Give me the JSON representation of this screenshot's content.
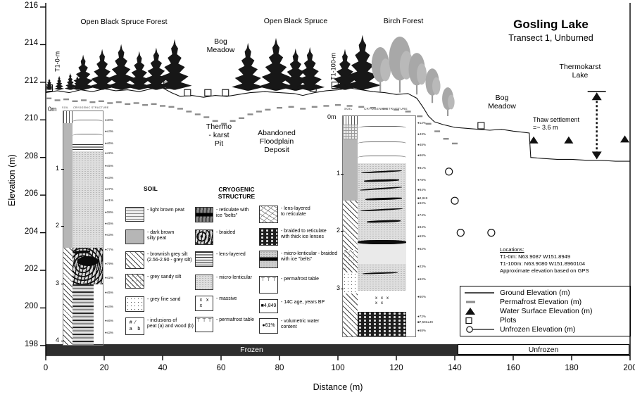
{
  "title": {
    "main": "Gosling Lake",
    "sub": "Transect 1, Unburned"
  },
  "labels": {
    "zone_spruce_forest": "Open Black Spruce Forest",
    "zone_bog_meadow_top": "Bog\nMeadow",
    "zone_open_black_spruce": "Open Black Spruce",
    "zone_birch_forest": "Birch Forest",
    "zone_bog_meadow_right": "Bog\nMeadow",
    "thermokarst_lake": "Thermokarst\nLake",
    "thaw_settlement": "Thaw settlement\n=~ 3.6 m",
    "thermokarst_pit": "Thermo\n- karst\nPit",
    "abandoned_floodplain": "Abandoned\nFloodplain\nDeposit",
    "t1_0m": "T1-0-m",
    "t1_100m": "T1-100-m",
    "frozen": "Frozen",
    "unfrozen": "Unfrozen"
  },
  "locations": {
    "heading": "Locations:",
    "line1": "T1-0m:    N63.9087  W151.8949",
    "line2": "T1-100m: N63.9080  W151.8960104",
    "line3": "Approximate elevation based on GPS"
  },
  "axes": {
    "xlabel": "Distance (m)",
    "ylabel": "Elevation (m)",
    "xlim": [
      0,
      200
    ],
    "ylim": [
      198,
      216
    ],
    "xticks": [
      0,
      20,
      40,
      60,
      80,
      100,
      120,
      140,
      160,
      180,
      200
    ],
    "yticks": [
      216,
      214,
      212,
      210,
      208,
      206,
      204,
      202,
      200,
      198
    ]
  },
  "marker_legend": [
    {
      "name": "ground",
      "label": "Ground Elevation (m)"
    },
    {
      "name": "permafrost",
      "label": "Permafrost Elevation (m)"
    },
    {
      "name": "water",
      "label": "Water Surface Elevation (m)"
    },
    {
      "name": "plots",
      "label": "Plots"
    },
    {
      "name": "unfrozen",
      "label": "Unfrozen Elevation (m)"
    }
  ],
  "soil_legend": {
    "title": "SOIL",
    "items": [
      {
        "pattern": "p-hlines",
        "label": "- light brown peat"
      },
      {
        "pattern": "p-gray",
        "label": "- dark brown\nsilty peat"
      },
      {
        "pattern": "p-hatch",
        "label": "- brownish grey silt\n(2.56-2.90 - grey silt)"
      },
      {
        "pattern": "p-sandy",
        "label": "- grey sandy silt"
      },
      {
        "pattern": "p-dots",
        "label": "- grey fine sand"
      },
      {
        "pattern": "p-incl",
        "glyph": "#  ⁄\na    b",
        "label": "- inclusions of\npeat (a) and wood (b)"
      }
    ]
  },
  "cryo_legend": {
    "title": "CRYOGENIC\nSTRUCTURE",
    "col1": [
      {
        "pattern": "p-retic",
        "label": "- reticulate with\nice \"belts\""
      },
      {
        "pattern": "p-braided",
        "label": "- braided"
      },
      {
        "pattern": "p-lens",
        "label": "- lens-layered"
      },
      {
        "pattern": "p-microlens",
        "label": "- micro-lenticular"
      },
      {
        "pattern": "p-massive",
        "glyph": "x   x\nx",
        "label": "- massive"
      },
      {
        "pattern": "p-pft",
        "glyph": "⊤ ⊤ ⊤",
        "glyph_top": true,
        "label": "- permafrost table"
      }
    ],
    "col2": [
      {
        "pattern": "p-lensretic",
        "label": "- lens-layered\nto reticulate"
      },
      {
        "pattern": "p-braidthick",
        "label": "- braided to reticulate\nwith thick ice lenses"
      },
      {
        "pattern": "p-microbelt",
        "label": "- micro-lenticular - braided\nwith ice \"belts\""
      },
      {
        "pattern": "p-pft",
        "glyph": "⊤ ⊤ ⊤",
        "glyph_top": true,
        "label": "- permafrost table"
      },
      {
        "pattern": "p-massive",
        "glyph": "■4,849",
        "label": "- 14C age, years BP"
      },
      {
        "pattern": "p-massive",
        "glyph": "●61%",
        "label": "- volumetric water\ncontent"
      }
    ]
  },
  "columns": {
    "left": {
      "top_label": "0m",
      "soil_header": "SOIL",
      "cryo_header": "CRYOGENIC STRUCTURE",
      "depths": [
        "1",
        "2",
        "3",
        "4"
      ],
      "meters_per_label": 1,
      "percents": [
        {
          "depth": 0.1,
          "text": "●40%"
        },
        {
          "depth": 0.3,
          "text": "●44%"
        },
        {
          "depth": 0.5,
          "text": "●46%"
        },
        {
          "depth": 0.68,
          "text": "●42%"
        },
        {
          "depth": 0.9,
          "text": "●45%"
        },
        {
          "depth": 1.1,
          "text": "●43%"
        },
        {
          "depth": 1.3,
          "text": "●47%"
        },
        {
          "depth": 1.5,
          "text": "●41%"
        },
        {
          "depth": 1.7,
          "text": "●38%"
        },
        {
          "depth": 1.9,
          "text": "●45%"
        },
        {
          "depth": 2.1,
          "text": "●43%"
        },
        {
          "depth": 2.35,
          "text": "●77%"
        },
        {
          "depth": 2.6,
          "text": "●79%"
        },
        {
          "depth": 2.85,
          "text": "●42%"
        },
        {
          "depth": 3.1,
          "text": "●45%"
        },
        {
          "depth": 3.35,
          "text": "●44%"
        },
        {
          "depth": 3.6,
          "text": "●46%"
        },
        {
          "depth": 3.8,
          "text": "●43%"
        }
      ]
    },
    "right": {
      "top_label": "0m",
      "soil_header": "SOIL",
      "cryo_header": "CRYOGENIC  STRUCTURE",
      "depths": [
        "1",
        "2",
        "3"
      ],
      "percents": [
        {
          "depth": 0.06,
          "text": "●12%"
        },
        {
          "depth": 0.26,
          "text": "●43%"
        },
        {
          "depth": 0.44,
          "text": "●48%"
        },
        {
          "depth": 0.63,
          "text": "●66%"
        },
        {
          "depth": 0.85,
          "text": "●81%"
        },
        {
          "depth": 1.06,
          "text": "●78%"
        },
        {
          "depth": 1.23,
          "text": "●84%"
        },
        {
          "depth": 1.37,
          "text": "■4,849"
        },
        {
          "depth": 1.46,
          "text": "●62%"
        },
        {
          "depth": 1.67,
          "text": "●74%"
        },
        {
          "depth": 1.88,
          "text": "●84%"
        },
        {
          "depth": 2.04,
          "text": "●63%"
        },
        {
          "depth": 2.26,
          "text": "●62%"
        },
        {
          "depth": 2.56,
          "text": "●23%"
        },
        {
          "depth": 2.79,
          "text": "●62%"
        },
        {
          "depth": 3.09,
          "text": "●50%"
        },
        {
          "depth": 3.43,
          "text": "●72%"
        },
        {
          "depth": 3.53,
          "text": "■7,592±49"
        },
        {
          "depth": 3.68,
          "text": "●68%"
        }
      ]
    }
  },
  "chart_data": {
    "type": "cross-section-profile",
    "title": "Gosling Lake, Transect 1, Unburned",
    "xlabel": "Distance (m)",
    "ylabel": "Elevation (m)",
    "xlim": [
      0,
      200
    ],
    "ylim": [
      198,
      216
    ],
    "grid": false,
    "legend_position": "bottom-right",
    "series": [
      {
        "name": "Ground Elevation (m)",
        "type": "line",
        "points": [
          [
            0,
            211.45
          ],
          [
            4,
            211.55
          ],
          [
            8,
            211.45
          ],
          [
            12,
            211.6
          ],
          [
            16,
            211.5
          ],
          [
            20,
            211.65
          ],
          [
            24,
            211.55
          ],
          [
            28,
            211.6
          ],
          [
            32,
            211.5
          ],
          [
            36,
            211.65
          ],
          [
            40,
            211.7
          ],
          [
            43,
            211.45
          ],
          [
            46,
            211.25
          ],
          [
            50,
            211.3
          ],
          [
            54,
            211.2
          ],
          [
            58,
            211.3
          ],
          [
            62,
            211.25
          ],
          [
            66,
            211.35
          ],
          [
            70,
            211.45
          ],
          [
            75,
            211.5
          ],
          [
            80,
            211.45
          ],
          [
            85,
            211.4
          ],
          [
            88,
            211.3
          ],
          [
            92,
            211.45
          ],
          [
            96,
            211.55
          ],
          [
            100,
            211.6
          ],
          [
            104,
            211.7
          ],
          [
            108,
            211.6
          ],
          [
            112,
            211.5
          ],
          [
            116,
            211.45
          ],
          [
            120,
            211.35
          ],
          [
            124,
            211.4
          ],
          [
            127,
            211.15
          ],
          [
            129,
            210.7
          ],
          [
            131,
            210.2
          ],
          [
            133,
            209.9
          ],
          [
            136,
            209.75
          ],
          [
            140,
            209.6
          ],
          [
            144,
            209.55
          ],
          [
            148,
            209.5
          ],
          [
            152,
            209.45
          ],
          [
            156,
            209.5
          ],
          [
            160,
            209.4
          ],
          [
            163,
            209.35
          ],
          [
            165.5,
            209.3
          ],
          [
            166,
            208.0
          ],
          [
            170,
            207.95
          ],
          [
            175,
            207.9
          ],
          [
            180,
            207.9
          ],
          [
            185,
            207.85
          ],
          [
            190,
            207.85
          ],
          [
            195,
            207.8
          ],
          [
            200,
            207.8
          ]
        ]
      },
      {
        "name": "Permafrost Elevation (m)",
        "type": "dash-markers",
        "points": [
          [
            1,
            211.15
          ],
          [
            4,
            211.05
          ],
          [
            7,
            211.1
          ],
          [
            10,
            211.0
          ],
          [
            13,
            211.05
          ],
          [
            16,
            210.95
          ],
          [
            19,
            211.0
          ],
          [
            22,
            210.9
          ],
          [
            25,
            210.95
          ],
          [
            28,
            210.85
          ],
          [
            31,
            210.9
          ],
          [
            34,
            210.8
          ],
          [
            37,
            210.85
          ],
          [
            40,
            210.75
          ],
          [
            43,
            210.7
          ],
          [
            46,
            210.6
          ],
          [
            49,
            210.45
          ],
          [
            52,
            210.3
          ],
          [
            55,
            210.15
          ],
          [
            58,
            209.95
          ],
          [
            61,
            209.8
          ],
          [
            64,
            209.95
          ],
          [
            67,
            210.1
          ],
          [
            70,
            210.3
          ],
          [
            73,
            210.45
          ],
          [
            76,
            210.55
          ],
          [
            80,
            210.65
          ],
          [
            84,
            210.7
          ],
          [
            88,
            210.6
          ],
          [
            92,
            210.7
          ],
          [
            96,
            210.75
          ],
          [
            100,
            210.8
          ],
          [
            104,
            210.75
          ],
          [
            108,
            210.7
          ],
          [
            112,
            210.65
          ],
          [
            116,
            210.6
          ],
          [
            120,
            210.55
          ],
          [
            124,
            210.45
          ],
          [
            128,
            210.2
          ],
          [
            131,
            209.8
          ],
          [
            134,
            209.4
          ],
          [
            137,
            209.0
          ],
          [
            140,
            208.75
          ]
        ]
      },
      {
        "name": "Water Surface Elevation (m)",
        "type": "triangle-markers",
        "points": [
          [
            167,
            208.75
          ],
          [
            179,
            208.75
          ],
          [
            198.2,
            208.8
          ]
        ]
      },
      {
        "name": "Plots",
        "type": "square-markers",
        "points": [
          [
            1.2,
            211.6
          ],
          [
            41.5,
            211.75
          ],
          [
            48.5,
            211.35
          ],
          [
            55.5,
            211.35
          ],
          [
            61.5,
            211.35
          ],
          [
            91.5,
            211.6
          ],
          [
            99,
            211.75
          ],
          [
            149,
            209.6
          ]
        ]
      },
      {
        "name": "Unfrozen Elevation (m)",
        "type": "circle-markers",
        "points": [
          [
            138,
            207.25
          ],
          [
            140,
            205.7
          ],
          [
            142,
            204.0
          ],
          [
            152.5,
            204.0
          ]
        ]
      }
    ],
    "annotations": {
      "thaw_settlement_m": 3.6,
      "thaw_arrow": {
        "x": 188.6,
        "top_elevation": 211.5,
        "bottom_elevation": 207.9
      },
      "water_level_mark": {
        "x": 188.6,
        "elevation": 211.5
      },
      "frozen_extent_m": [
        0,
        141
      ],
      "unfrozen_extent_m": [
        141,
        200
      ]
    },
    "vegetation": {
      "spruce": [
        [
          12.8,
          50,
          211.6
        ],
        [
          19.3,
          58,
          211.6
        ],
        [
          25.8,
          65,
          211.6
        ],
        [
          32,
          55,
          211.6
        ],
        [
          37.8,
          60,
          211.6
        ],
        [
          44.1,
          72,
          211.6
        ],
        [
          69.2,
          68,
          211.55
        ],
        [
          78.8,
          75,
          211.55
        ],
        [
          85.5,
          60,
          211.55
        ],
        [
          90.4,
          62,
          211.55
        ],
        [
          102.4,
          58,
          211.6
        ],
        [
          108.4,
          78,
          211.6
        ]
      ],
      "shrubs": [
        [
          1.2,
          16,
          211.6
        ],
        [
          4.6,
          20,
          211.6
        ],
        [
          8.4,
          24,
          211.6
        ],
        [
          10.8,
          20,
          211.6
        ]
      ],
      "birch": [
        [
          114.5,
          62,
          211.5
        ],
        [
          121.2,
          78,
          211.45
        ],
        [
          127,
          58,
          211.35
        ],
        [
          132.3,
          48,
          210.9
        ],
        [
          137.6,
          40,
          210.2
        ]
      ]
    }
  }
}
